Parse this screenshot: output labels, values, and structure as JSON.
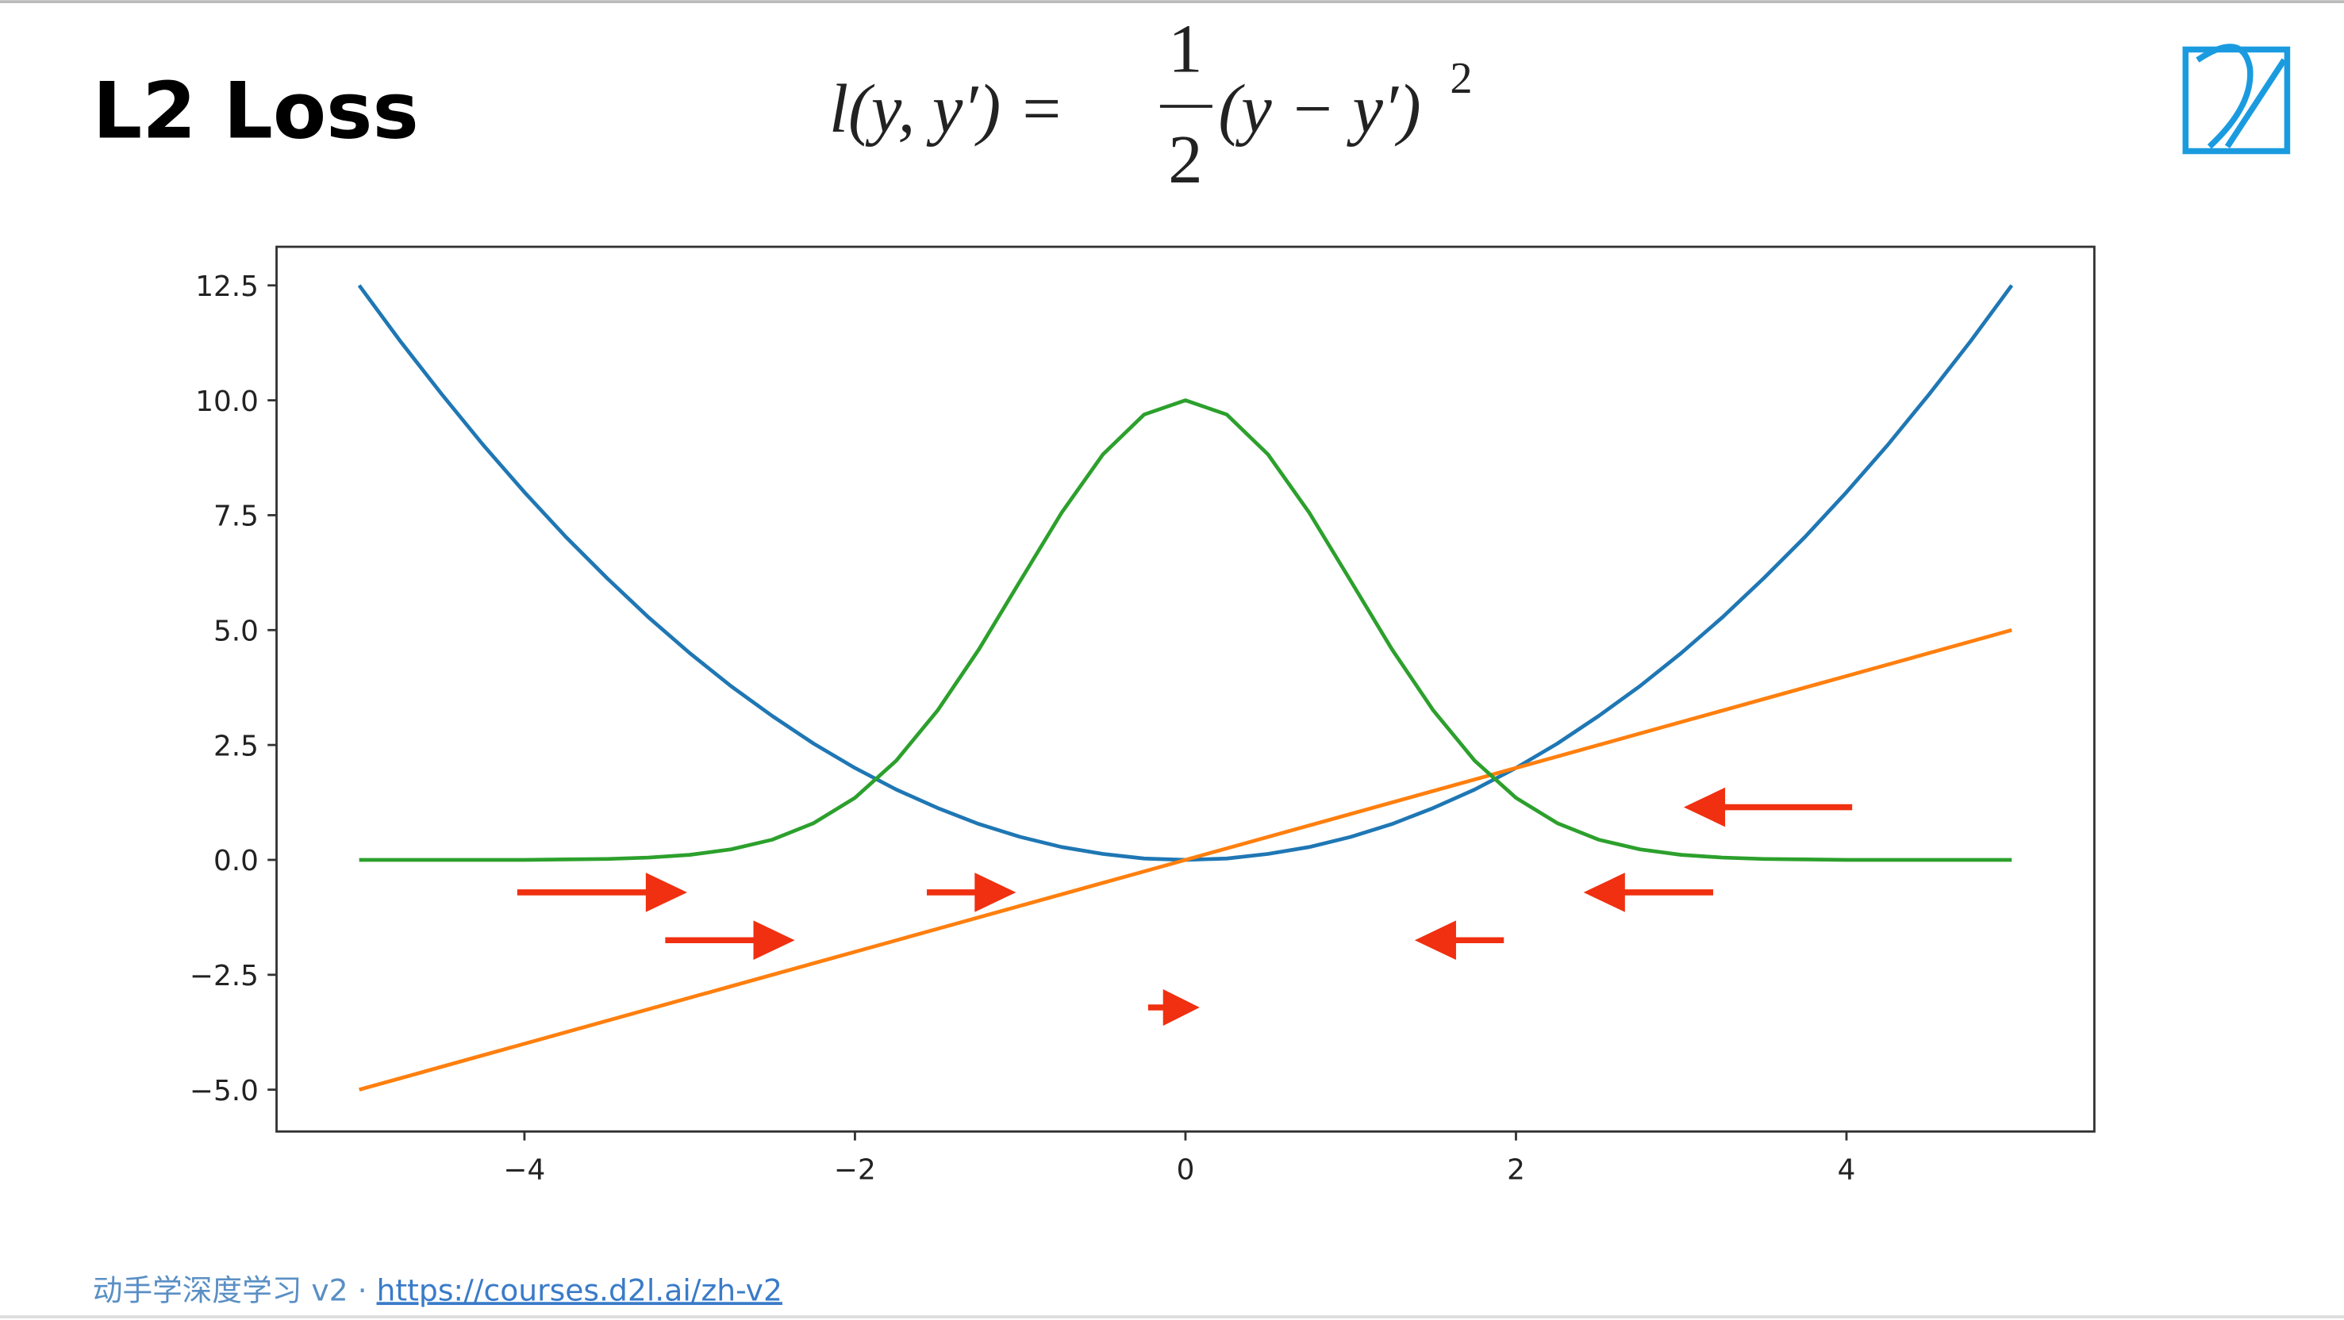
{
  "title": "L2 Loss",
  "formula": {
    "lhs": "l(y, y′) =",
    "numerator": "1",
    "denominator": "2",
    "rhs": "(y − y′)",
    "exponent": "2"
  },
  "chart_data": {
    "type": "line",
    "x": [
      -5,
      -4.75,
      -4.5,
      -4.25,
      -4,
      -3.75,
      -3.5,
      -3.25,
      -3,
      -2.75,
      -2.5,
      -2.25,
      -2,
      -1.75,
      -1.5,
      -1.25,
      -1,
      -0.75,
      -0.5,
      -0.25,
      0,
      0.25,
      0.5,
      0.75,
      1,
      1.25,
      1.5,
      1.75,
      2,
      2.25,
      2.5,
      2.75,
      3,
      3.25,
      3.5,
      3.75,
      4,
      4.25,
      4.5,
      4.75,
      5
    ],
    "series": [
      {
        "color": "#1f77b4",
        "values": [
          12.5,
          11.28,
          10.13,
          9.03,
          8,
          7.03,
          6.13,
          5.28,
          4.5,
          3.78,
          3.13,
          2.53,
          2,
          1.53,
          1.13,
          0.78,
          0.5,
          0.28,
          0.13,
          0.03,
          0,
          0.03,
          0.13,
          0.28,
          0.5,
          0.78,
          1.13,
          1.53,
          2,
          2.53,
          3.13,
          3.78,
          4.5,
          5.28,
          6.13,
          7.03,
          8,
          9.03,
          10.13,
          11.28,
          12.5
        ]
      },
      {
        "color": "#ff7f0e",
        "values": [
          -5,
          -4.75,
          -4.5,
          -4.25,
          -4,
          -3.75,
          -3.5,
          -3.25,
          -3,
          -2.75,
          -2.5,
          -2.25,
          -2,
          -1.75,
          -1.5,
          -1.25,
          -1,
          -0.75,
          -0.5,
          -0.25,
          0,
          0.25,
          0.5,
          0.75,
          1,
          1.25,
          1.5,
          1.75,
          2,
          2.25,
          2.5,
          2.75,
          3,
          3.25,
          3.5,
          3.75,
          4,
          4.25,
          4.5,
          4.75,
          5
        ]
      },
      {
        "color": "#2ca02c",
        "values": [
          0,
          0,
          0,
          0,
          0,
          0.01,
          0.02,
          0.05,
          0.11,
          0.23,
          0.44,
          0.8,
          1.35,
          2.16,
          3.25,
          4.58,
          6.07,
          7.55,
          8.82,
          9.69,
          10,
          9.69,
          8.82,
          7.55,
          6.07,
          4.58,
          3.25,
          2.16,
          1.35,
          0.8,
          0.44,
          0.23,
          0.11,
          0.05,
          0.02,
          0.01,
          0,
          0,
          0,
          0,
          0
        ]
      }
    ],
    "xlim": [
      -5.5,
      5.5
    ],
    "ylim": [
      -5.91,
      13.34
    ],
    "xticks": [
      {
        "value": -4,
        "label": "−4"
      },
      {
        "value": -2,
        "label": "−2"
      },
      0,
      2,
      4
    ],
    "yticks": [
      {
        "value": -5,
        "label": "−5.0"
      },
      {
        "value": -2.5,
        "label": "−2.5"
      },
      {
        "value": 0,
        "label": "0.0"
      },
      {
        "value": 2.5,
        "label": "2.5"
      },
      {
        "value": 5,
        "label": "5.0"
      },
      {
        "value": 7.5,
        "label": "7.5"
      },
      {
        "value": 10,
        "label": "10.0"
      },
      {
        "value": 12.5,
        "label": "12.5"
      }
    ],
    "grid": false
  },
  "footer": {
    "course": "动手学深度学习 v2 · ",
    "link": "https://courses.d2l.ai/zh-v2"
  }
}
